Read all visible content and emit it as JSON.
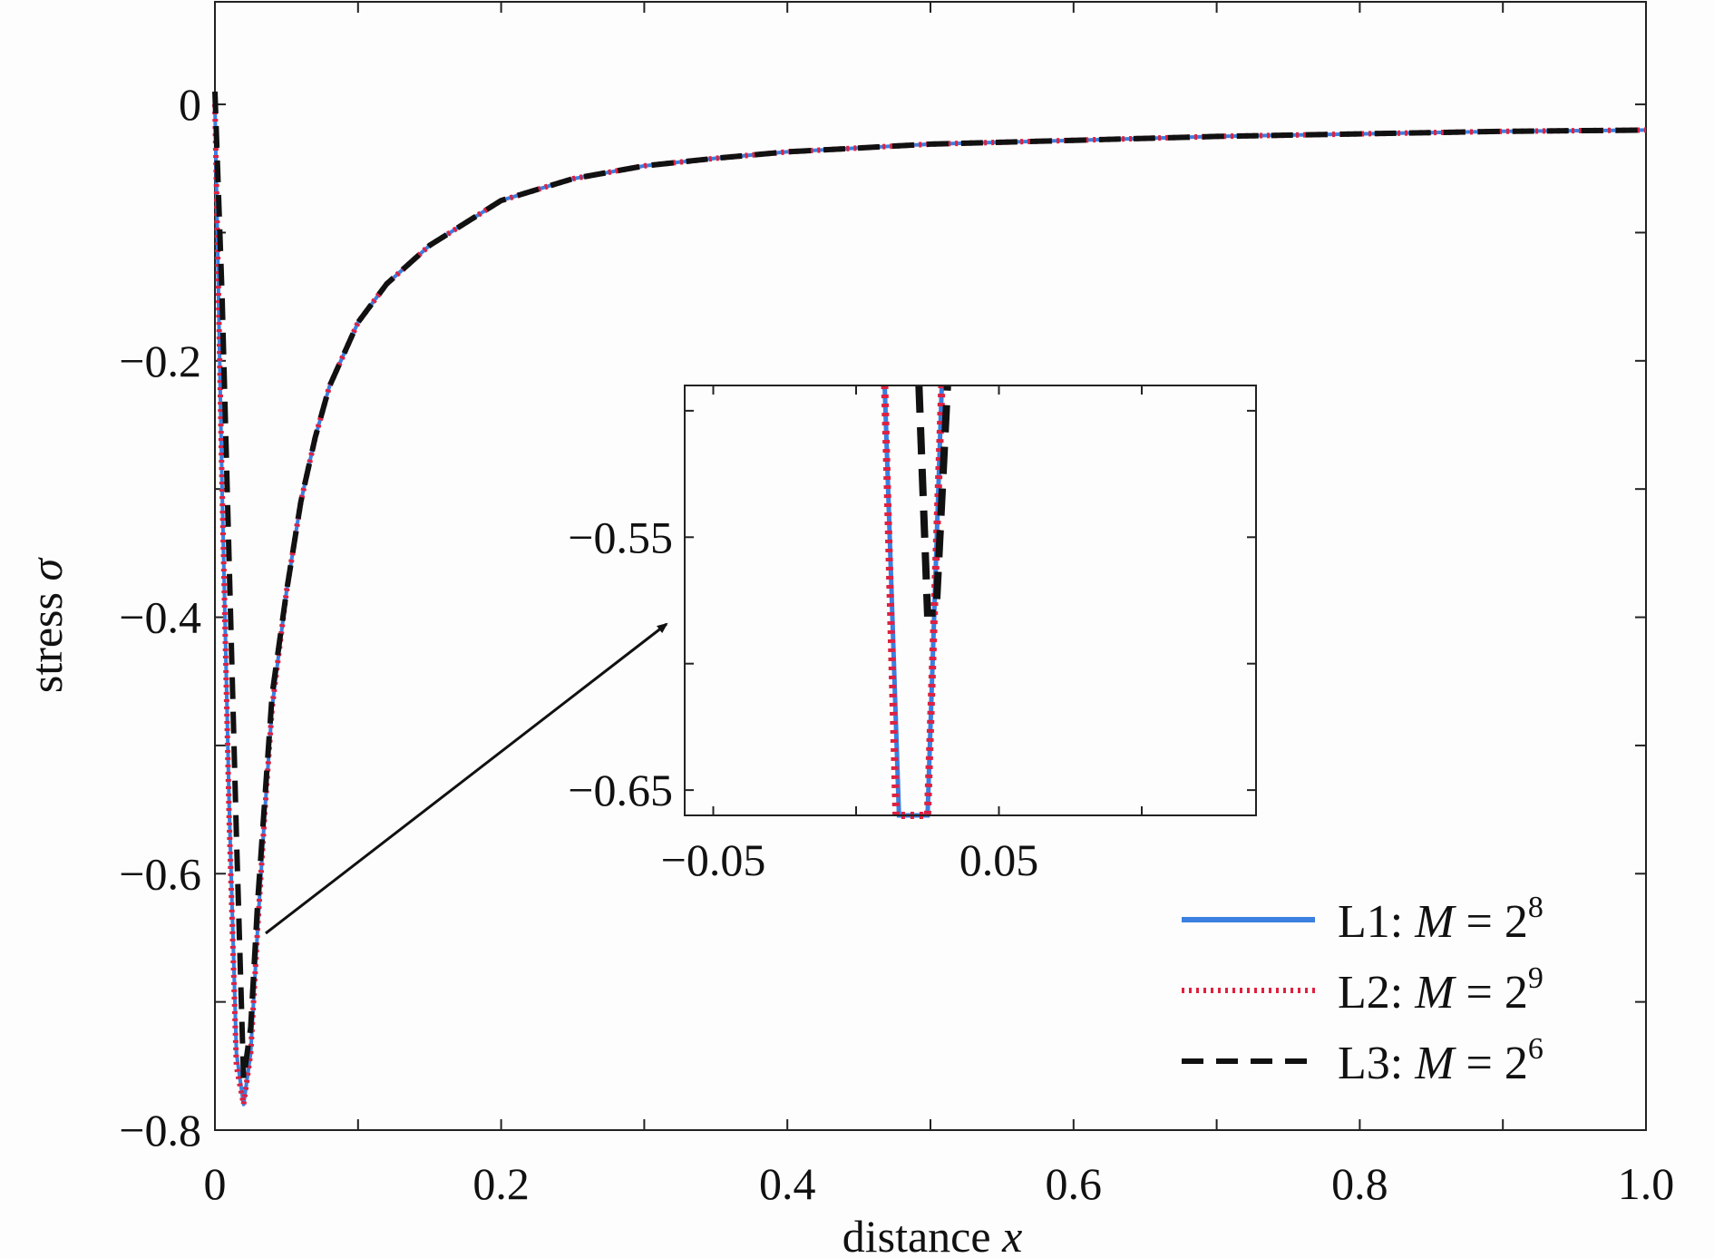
{
  "chart_data": [
    {
      "type": "line",
      "role": "main",
      "xlabel_text": "distance ",
      "xlabel_var": "x",
      "ylabel_text": "stress ",
      "ylabel_var": "σ",
      "xlim": [
        0,
        1.0
      ],
      "ylim": [
        -0.8,
        0.08
      ],
      "xticks": [
        0,
        0.2,
        0.4,
        0.6,
        0.8,
        1.0
      ],
      "xtick_labels": [
        "0",
        "0.2",
        "0.4",
        "0.6",
        "0.8",
        "1.0"
      ],
      "yticks": [
        0,
        -0.2,
        -0.4,
        -0.6,
        -0.8
      ],
      "ytick_labels": [
        "0",
        "−0.2",
        "−0.4",
        "−0.6",
        "−0.8"
      ],
      "grid": false,
      "legend_position": "bottom-right",
      "series": [
        {
          "name": "L1",
          "legend_eq": "M=2",
          "legend_exp": "8",
          "color": "#3b7fe0",
          "style": "solid",
          "x": [
            0,
            0.005,
            0.01,
            0.015,
            0.02,
            0.025,
            0.03,
            0.035,
            0.04,
            0.05,
            0.06,
            0.07,
            0.08,
            0.1,
            0.12,
            0.15,
            0.2,
            0.25,
            0.3,
            0.35,
            0.4,
            0.5,
            0.6,
            0.7,
            0.8,
            0.9,
            1.0
          ],
          "y": [
            0,
            -0.3,
            -0.55,
            -0.74,
            -0.78,
            -0.74,
            -0.64,
            -0.55,
            -0.47,
            -0.38,
            -0.31,
            -0.26,
            -0.22,
            -0.17,
            -0.14,
            -0.11,
            -0.075,
            -0.058,
            -0.048,
            -0.042,
            -0.037,
            -0.031,
            -0.028,
            -0.025,
            -0.023,
            -0.021,
            -0.02
          ]
        },
        {
          "name": "L2",
          "legend_eq": "M=2",
          "legend_exp": "9",
          "color": "#e02040",
          "style": "dotted",
          "x": [
            0,
            0.005,
            0.01,
            0.015,
            0.02,
            0.025,
            0.03,
            0.035,
            0.04,
            0.05,
            0.06,
            0.07,
            0.08,
            0.1,
            0.12,
            0.15,
            0.2,
            0.25,
            0.3,
            0.35,
            0.4,
            0.5,
            0.6,
            0.7,
            0.8,
            0.9,
            1.0
          ],
          "y": [
            0,
            -0.3,
            -0.56,
            -0.75,
            -0.78,
            -0.74,
            -0.64,
            -0.55,
            -0.47,
            -0.38,
            -0.31,
            -0.26,
            -0.22,
            -0.17,
            -0.14,
            -0.11,
            -0.075,
            -0.058,
            -0.048,
            -0.042,
            -0.037,
            -0.031,
            -0.028,
            -0.025,
            -0.023,
            -0.021,
            -0.02
          ]
        },
        {
          "name": "L3",
          "legend_eq": "M=2",
          "legend_exp": "6",
          "color": "#111111",
          "style": "dashed",
          "x": [
            0,
            0.005,
            0.01,
            0.015,
            0.02,
            0.025,
            0.03,
            0.035,
            0.04,
            0.05,
            0.06,
            0.07,
            0.08,
            0.1,
            0.12,
            0.15,
            0.2,
            0.25,
            0.3,
            0.35,
            0.4,
            0.5,
            0.6,
            0.7,
            0.8,
            0.9,
            1.0
          ],
          "y": [
            0.01,
            -0.15,
            -0.36,
            -0.57,
            -0.76,
            -0.72,
            -0.62,
            -0.54,
            -0.46,
            -0.38,
            -0.31,
            -0.26,
            -0.22,
            -0.17,
            -0.14,
            -0.11,
            -0.075,
            -0.058,
            -0.048,
            -0.042,
            -0.037,
            -0.031,
            -0.028,
            -0.025,
            -0.023,
            -0.021,
            -0.02
          ]
        }
      ]
    },
    {
      "type": "line",
      "role": "inset",
      "xlim": [
        -0.06,
        0.14
      ],
      "ylim": [
        -0.66,
        -0.49
      ],
      "xticks": [
        -0.05,
        0.05
      ],
      "xtick_labels": [
        "−0.05",
        "0.05"
      ],
      "yticks": [
        -0.55,
        -0.65
      ],
      "ytick_labels": [
        "−0.55",
        "−0.65"
      ],
      "series": [
        {
          "name": "L1",
          "color": "#3b7fe0",
          "style": "solid",
          "x": [
            0.01,
            0.015,
            0.025,
            0.03
          ],
          "y": [
            -0.49,
            -0.66,
            -0.66,
            -0.49
          ]
        },
        {
          "name": "L2",
          "color": "#e02040",
          "style": "dotted",
          "x": [
            0.01,
            0.014,
            0.025,
            0.03
          ],
          "y": [
            -0.49,
            -0.66,
            -0.66,
            -0.49
          ]
        },
        {
          "name": "L3",
          "color": "#111111",
          "style": "dashed",
          "x": [
            0.022,
            0.025,
            0.028,
            0.032
          ],
          "y": [
            -0.49,
            -0.58,
            -0.58,
            -0.49
          ]
        }
      ]
    }
  ]
}
